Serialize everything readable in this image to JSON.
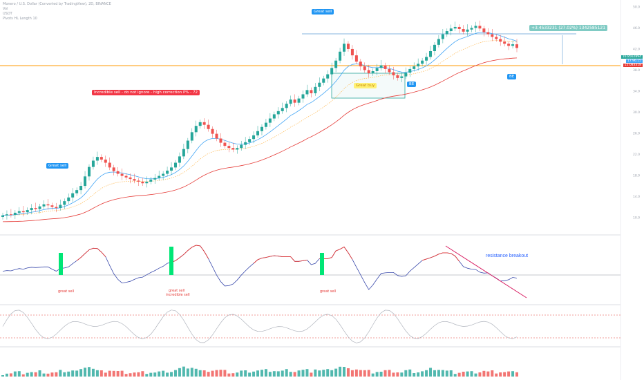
{
  "header": {
    "line1": "Monero / U.S. Dollar (Converted by TradingView), 2D, BINANCE",
    "line2": "Vol",
    "line3": "USDT",
    "line4": "Pivots HL Length 10"
  },
  "tags": {
    "great_sell_1": "Great sell",
    "great_sell_2": "Great sell",
    "incredible_sell": "Incredible sell - do not ignore - high correction P% - 72",
    "great_buy": "Great buy",
    "buy_1": "BE",
    "buy_2": "BE",
    "measure": "+3.4533231 (27.02%) 1342585121"
  },
  "osc_notes": {
    "great_sell_1": "great sell",
    "great_sell_2": "great sell",
    "incredible": "incredible sell",
    "great_sell_3": "great sell",
    "resistance": "resistance breakout"
  },
  "price_tags": {
    "current": "16.8562894",
    "ma1": "17.96.15",
    "ma2": "15.083318"
  },
  "colors": {
    "up": "#26a69a",
    "down": "#ef5350",
    "ema_blue": "#42a5f5",
    "ema_red": "#e53935",
    "ema_dotted": "#ffb74d",
    "horizontal": "#ff9800",
    "resistance_line": "#5b9bd5",
    "osc_line": "#3949ab",
    "osc_hot": "#e53935",
    "osc_green": "#00e676",
    "trendline": "#d81b60"
  },
  "chart_data": {
    "type": "candlestick",
    "closes": [
      10.4,
      10.6,
      10.5,
      10.9,
      11.2,
      11.0,
      11.4,
      11.8,
      11.6,
      12.1,
      12.5,
      12.3,
      12.0,
      11.8,
      12.4,
      13.1,
      13.8,
      14.6,
      15.2,
      16.0,
      17.8,
      19.6,
      20.8,
      21.5,
      21.0,
      20.4,
      19.5,
      18.8,
      18.3,
      17.9,
      17.6,
      17.3,
      17.0,
      16.8,
      16.5,
      16.8,
      17.2,
      17.5,
      17.9,
      18.3,
      18.9,
      19.5,
      20.4,
      21.6,
      23.0,
      24.6,
      26.2,
      27.4,
      28.1,
      27.6,
      26.8,
      25.9,
      25.0,
      24.2,
      23.6,
      23.2,
      22.9,
      23.2,
      23.8,
      24.3,
      24.9,
      25.6,
      26.4,
      27.2,
      28.0,
      28.8,
      29.6,
      30.2,
      30.8,
      31.6,
      32.4,
      31.8,
      32.6,
      33.4,
      34.2,
      33.6,
      34.8,
      35.6,
      36.4,
      37.2,
      38.4,
      39.8,
      41.5,
      43.0,
      42.0,
      40.8,
      39.6,
      38.7,
      38.0,
      37.4,
      37.8,
      38.4,
      38.9,
      38.2,
      37.6,
      37.0,
      36.5,
      36.8,
      37.5,
      38.2,
      38.7,
      39.2,
      39.8,
      40.5,
      41.6,
      42.8,
      43.9,
      44.8,
      45.4,
      45.9,
      46.2,
      45.8,
      45.3,
      45.7,
      46.0,
      46.4,
      45.9,
      45.2,
      44.8,
      44.3,
      43.9,
      43.4,
      43.0,
      42.6,
      42.9,
      42.2
    ],
    "ema_fast": "20-period EMA",
    "ema_slow": "200-period MA",
    "indicators": [
      "Stoch RSI",
      "Volume"
    ]
  }
}
